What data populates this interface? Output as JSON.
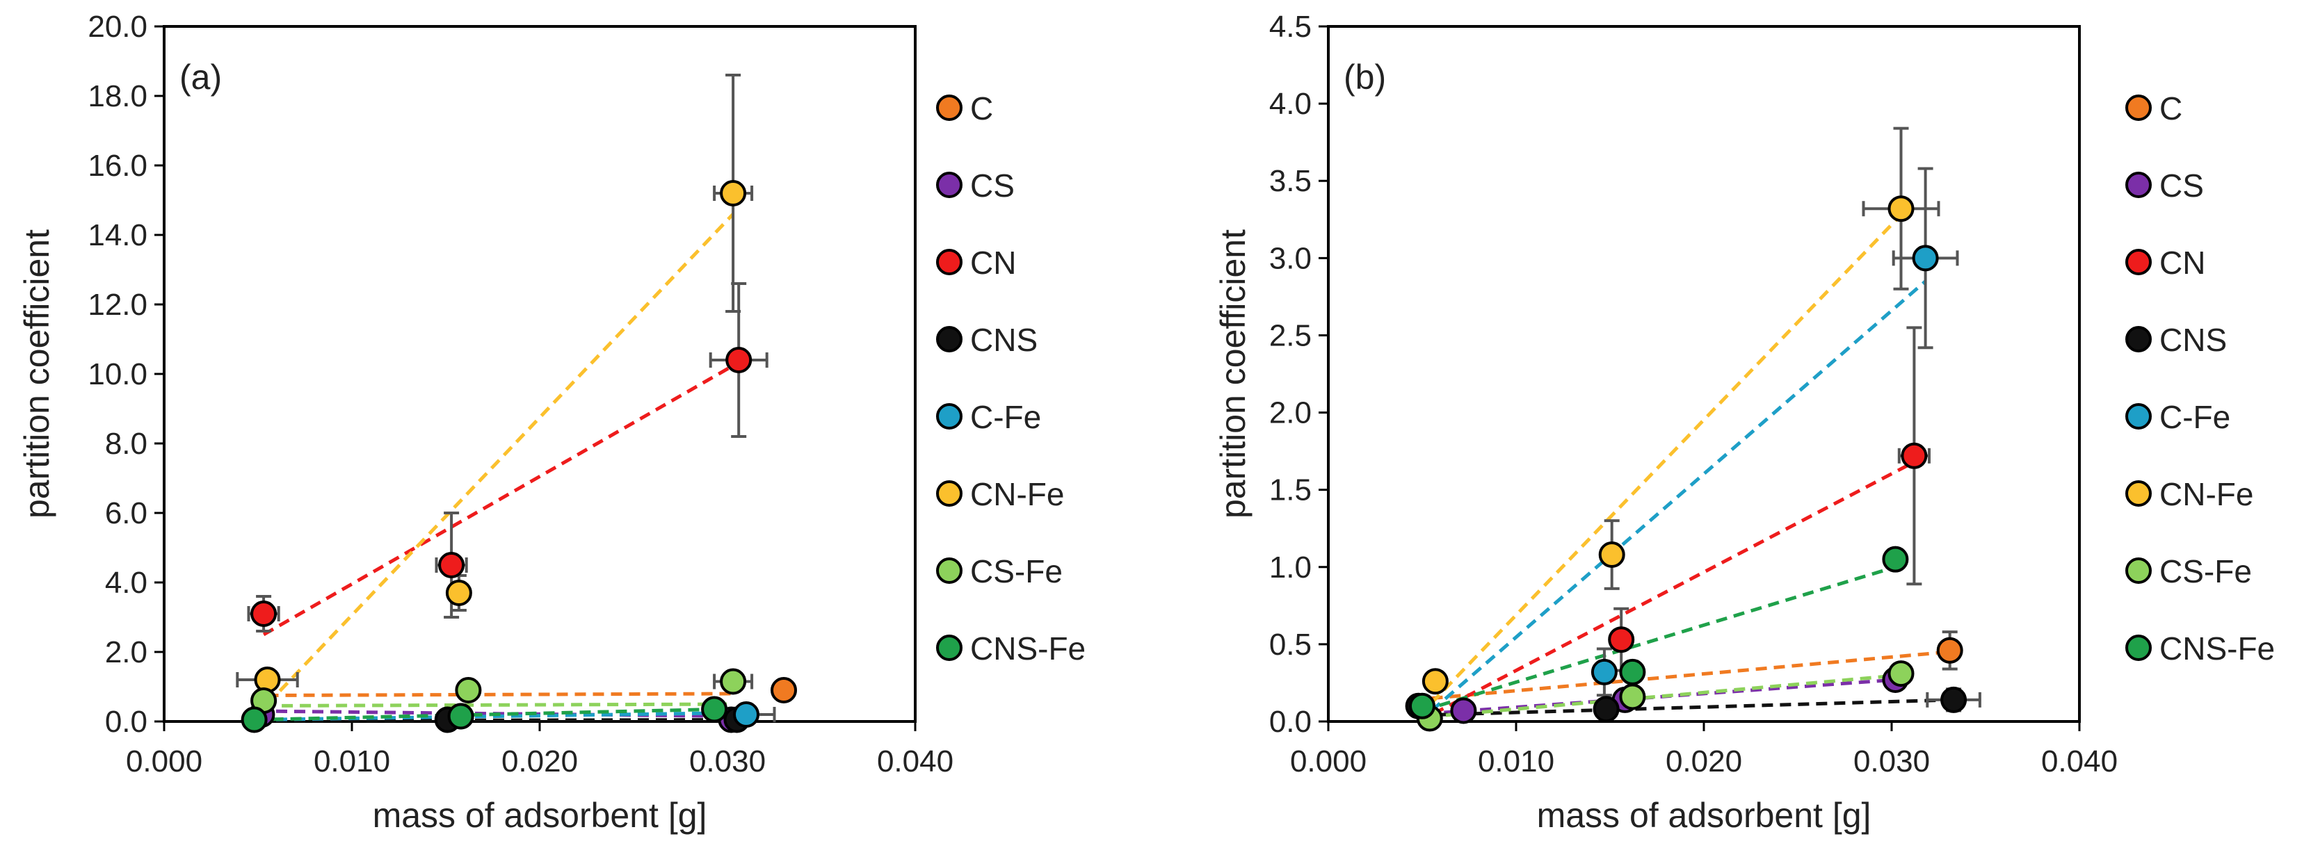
{
  "chart_data": [
    {
      "type": "scatter",
      "panel_label": "(a)",
      "xlabel": "mass of adsorbent [g]",
      "ylabel": "partition coefficient",
      "xlim": [
        0,
        0.04
      ],
      "ylim": [
        0,
        20
      ],
      "x_ticks": [
        "0.000",
        "0.010",
        "0.020",
        "0.030",
        "0.040"
      ],
      "y_ticks": [
        "0.0",
        "2.0",
        "4.0",
        "6.0",
        "8.0",
        "10.0",
        "12.0",
        "14.0",
        "16.0",
        "18.0",
        "20.0"
      ],
      "grid": false,
      "legend_position": "right",
      "series": [
        {
          "name": "C",
          "color": "#F07A21",
          "trendline": [
            [
              0.0055,
              0.75
            ],
            [
              0.0305,
              0.8
            ]
          ],
          "points": [
            {
              "x": 0.033,
              "y": 0.9,
              "xerr": 0.0,
              "yerr": 0.0
            }
          ]
        },
        {
          "name": "CS",
          "color": "#7B2FA8",
          "trendline": [
            [
              0.005,
              0.3
            ],
            [
              0.0305,
              0.15
            ]
          ],
          "points": [
            {
              "x": 0.0052,
              "y": 0.2,
              "xerr": 0.0,
              "yerr": 0.0
            },
            {
              "x": 0.0158,
              "y": 0.15,
              "xerr": 0.0,
              "yerr": 0.0
            },
            {
              "x": 0.0302,
              "y": 0.05,
              "xerr": 0.0,
              "yerr": 0.0
            }
          ]
        },
        {
          "name": "CN",
          "color": "#EE1C1C",
          "trendline": [
            [
              0.0053,
              2.5
            ],
            [
              0.0305,
              10.3
            ]
          ],
          "points": [
            {
              "x": 0.0053,
              "y": 3.1,
              "xerr": 0.0008,
              "yerr": 0.5
            },
            {
              "x": 0.0153,
              "y": 4.5,
              "xerr": 0.0008,
              "yerr": 1.5
            },
            {
              "x": 0.0306,
              "y": 10.4,
              "xerr": 0.0015,
              "yerr": 2.2
            }
          ]
        },
        {
          "name": "CNS",
          "color": "#111111",
          "trendline": [
            [
              0.005,
              0.02
            ],
            [
              0.0305,
              0.05
            ]
          ],
          "points": [
            {
              "x": 0.0151,
              "y": 0.05,
              "xerr": 0.0,
              "yerr": 0.0
            },
            {
              "x": 0.0305,
              "y": 0.05,
              "xerr": 0.0,
              "yerr": 0.0
            }
          ]
        },
        {
          "name": "C-Fe",
          "color": "#1E9FC7",
          "trendline": [
            [
              0.005,
              0.05
            ],
            [
              0.0307,
              0.25
            ]
          ],
          "points": [
            {
              "x": 0.031,
              "y": 0.2,
              "xerr": 0.0015,
              "yerr": 0.0
            }
          ]
        },
        {
          "name": "CN-Fe",
          "color": "#FBC02D",
          "trendline": [
            [
              0.0055,
              0.5
            ],
            [
              0.0303,
              14.6
            ]
          ],
          "points": [
            {
              "x": 0.0055,
              "y": 1.2,
              "xerr": 0.0016,
              "yerr": 0.0
            },
            {
              "x": 0.0157,
              "y": 3.7,
              "xerr": 0.0,
              "yerr": 0.5
            },
            {
              "x": 0.0303,
              "y": 15.2,
              "xerr": 0.001,
              "yerr": 3.4
            }
          ]
        },
        {
          "name": "CS-Fe",
          "color": "#8DD25B",
          "trendline": [
            [
              0.0053,
              0.45
            ],
            [
              0.0303,
              0.5
            ]
          ],
          "points": [
            {
              "x": 0.0053,
              "y": 0.6,
              "xerr": 0.0,
              "yerr": 0.0
            },
            {
              "x": 0.0162,
              "y": 0.9,
              "xerr": 0.0,
              "yerr": 0.0
            },
            {
              "x": 0.0303,
              "y": 1.15,
              "xerr": 0.001,
              "yerr": 0.0
            }
          ]
        },
        {
          "name": "CNS-Fe",
          "color": "#1FA14A",
          "trendline": [
            [
              0.0048,
              0.05
            ],
            [
              0.0293,
              0.35
            ]
          ],
          "points": [
            {
              "x": 0.0048,
              "y": 0.05,
              "xerr": 0.0,
              "yerr": 0.0
            },
            {
              "x": 0.0158,
              "y": 0.15,
              "xerr": 0.0,
              "yerr": 0.0
            },
            {
              "x": 0.0293,
              "y": 0.35,
              "xerr": 0.0,
              "yerr": 0.0
            }
          ]
        }
      ]
    },
    {
      "type": "scatter",
      "panel_label": "(b)",
      "xlabel": "mass of adsorbent [g]",
      "ylabel": "partition coefficient",
      "xlim": [
        0,
        0.04
      ],
      "ylim": [
        0,
        4.5
      ],
      "x_ticks": [
        "0.000",
        "0.010",
        "0.020",
        "0.030",
        "0.040"
      ],
      "y_ticks": [
        "0.0",
        "0.5",
        "1.0",
        "1.5",
        "2.0",
        "2.5",
        "3.0",
        "3.5",
        "4.0",
        "4.5"
      ],
      "grid": false,
      "legend_position": "right",
      "series": [
        {
          "name": "C",
          "color": "#F07A21",
          "trendline": [
            [
              0.0055,
              0.15
            ],
            [
              0.033,
              0.45
            ]
          ],
          "points": [
            {
              "x": 0.0331,
              "y": 0.46,
              "xerr": 0.0,
              "yerr": 0.12
            }
          ]
        },
        {
          "name": "CS",
          "color": "#7B2FA8",
          "trendline": [
            [
              0.0052,
              0.05
            ],
            [
              0.0302,
              0.27
            ]
          ],
          "points": [
            {
              "x": 0.0072,
              "y": 0.07,
              "xerr": 0.0,
              "yerr": 0.0
            },
            {
              "x": 0.0158,
              "y": 0.14,
              "xerr": 0.0,
              "yerr": 0.0
            },
            {
              "x": 0.0302,
              "y": 0.27,
              "xerr": 0.0,
              "yerr": 0.0
            }
          ]
        },
        {
          "name": "CN",
          "color": "#EE1C1C",
          "trendline": [
            [
              0.0056,
              0.05
            ],
            [
              0.0312,
              1.68
            ]
          ],
          "points": [
            {
              "x": 0.0156,
              "y": 0.53,
              "xerr": 0.0,
              "yerr": 0.2
            },
            {
              "x": 0.0312,
              "y": 1.72,
              "xerr": 0.0008,
              "yerr": 0.83
            }
          ]
        },
        {
          "name": "CNS",
          "color": "#111111",
          "trendline": [
            [
              0.0048,
              0.04
            ],
            [
              0.0333,
              0.14
            ]
          ],
          "points": [
            {
              "x": 0.0048,
              "y": 0.1,
              "xerr": 0.0,
              "yerr": 0.0
            },
            {
              "x": 0.0148,
              "y": 0.08,
              "xerr": 0.0,
              "yerr": 0.0
            },
            {
              "x": 0.0333,
              "y": 0.14,
              "xerr": 0.0014,
              "yerr": 0.07
            }
          ]
        },
        {
          "name": "C-Fe",
          "color": "#1E9FC7",
          "trendline": [
            [
              0.0055,
              0.07
            ],
            [
              0.0318,
              2.85
            ]
          ],
          "points": [
            {
              "x": 0.0147,
              "y": 0.32,
              "xerr": 0.0,
              "yerr": 0.15
            },
            {
              "x": 0.0318,
              "y": 3.0,
              "xerr": 0.0017,
              "yerr": 0.58
            }
          ]
        },
        {
          "name": "CN-Fe",
          "color": "#FBC02D",
          "trendline": [
            [
              0.0055,
              0.12
            ],
            [
              0.0305,
              3.28
            ]
          ],
          "points": [
            {
              "x": 0.0057,
              "y": 0.26,
              "xerr": 0.0,
              "yerr": 0.0
            },
            {
              "x": 0.0151,
              "y": 1.08,
              "xerr": 0.0,
              "yerr": 0.22
            },
            {
              "x": 0.0305,
              "y": 3.32,
              "xerr": 0.002,
              "yerr": 0.52
            }
          ]
        },
        {
          "name": "CS-Fe",
          "color": "#8DD25B",
          "trendline": [
            [
              0.0053,
              0.03
            ],
            [
              0.0305,
              0.3
            ]
          ],
          "points": [
            {
              "x": 0.0054,
              "y": 0.02,
              "xerr": 0.0,
              "yerr": 0.0
            },
            {
              "x": 0.0162,
              "y": 0.16,
              "xerr": 0.0,
              "yerr": 0.0
            },
            {
              "x": 0.0305,
              "y": 0.31,
              "xerr": 0.0,
              "yerr": 0.0
            }
          ]
        },
        {
          "name": "CNS-Fe",
          "color": "#1FA14A",
          "trendline": [
            [
              0.005,
              0.07
            ],
            [
              0.0302,
              1.0
            ]
          ],
          "points": [
            {
              "x": 0.005,
              "y": 0.1,
              "xerr": 0.0,
              "yerr": 0.0
            },
            {
              "x": 0.0162,
              "y": 0.32,
              "xerr": 0.0,
              "yerr": 0.0
            },
            {
              "x": 0.0302,
              "y": 1.05,
              "xerr": 0.0,
              "yerr": 0.0
            }
          ]
        }
      ]
    }
  ]
}
